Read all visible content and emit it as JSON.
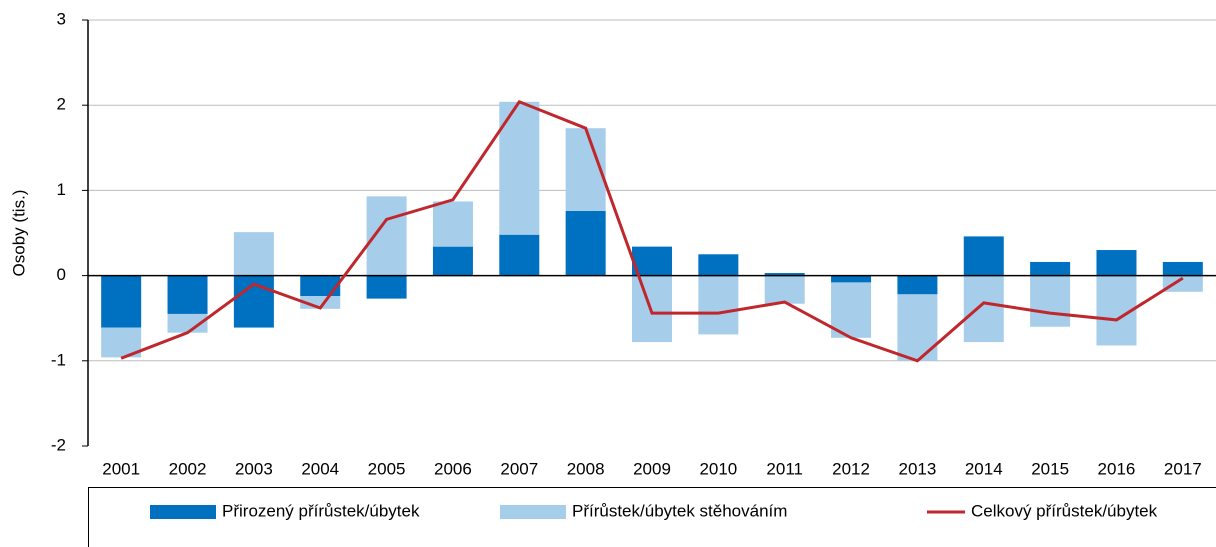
{
  "chart_data": {
    "type": "bar_line",
    "y_label": "Osoby (tis.)",
    "categories": [
      "2001",
      "2002",
      "2003",
      "2004",
      "2005",
      "2006",
      "2007",
      "2008",
      "2009",
      "2010",
      "2011",
      "2012",
      "2013",
      "2014",
      "2015",
      "2016",
      "2017"
    ],
    "series": [
      {
        "name": "Přirozený přírůstek/úbytek",
        "type": "bar",
        "color": "#0070c0",
        "values": [
          -0.61,
          -0.45,
          -0.61,
          -0.24,
          -0.27,
          0.34,
          0.48,
          0.76,
          0.34,
          0.25,
          0.03,
          -0.08,
          -0.22,
          0.46,
          0.16,
          0.3,
          0.16
        ]
      },
      {
        "name": "Přírůstek/úbytek stěhováním",
        "type": "bar",
        "color": "#a6cde9",
        "values": [
          -0.35,
          -0.22,
          0.51,
          -0.15,
          0.93,
          0.53,
          1.56,
          0.97,
          -0.78,
          -0.69,
          -0.33,
          -0.65,
          -0.78,
          -0.78,
          -0.6,
          -0.82,
          -0.19
        ]
      },
      {
        "name": "Celkový přírůstek/úbytek",
        "type": "line",
        "color": "#c0272d",
        "values": [
          -0.97,
          -0.67,
          -0.1,
          -0.38,
          0.66,
          0.89,
          2.04,
          1.73,
          -0.44,
          -0.44,
          -0.31,
          -0.73,
          -1.0,
          -0.32,
          -0.44,
          -0.52,
          -0.03
        ]
      }
    ],
    "ylim": [
      -2,
      3
    ],
    "yticks": [
      -2,
      -1,
      0,
      1,
      2,
      3
    ],
    "grid": true
  }
}
